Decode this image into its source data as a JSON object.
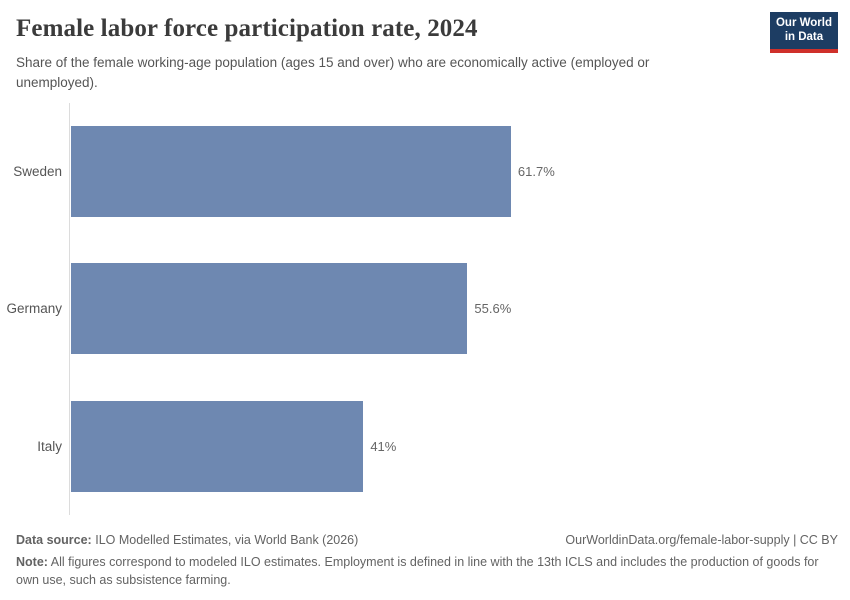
{
  "header": {
    "title": "Female labor force participation rate, 2024",
    "subtitle": "Share of the female working-age population (ages 15 and over) who are economically active (employed or unemployed).",
    "logo": {
      "line1": "Our World",
      "line2": "in Data"
    }
  },
  "chart_data": {
    "type": "bar",
    "orientation": "horizontal",
    "title": "Female labor force participation rate, 2024",
    "categories": [
      "Sweden",
      "Germany",
      "Italy"
    ],
    "values": [
      61.7,
      55.6,
      41
    ],
    "value_labels": [
      "61.7%",
      "55.6%",
      "41%"
    ],
    "unit": "%",
    "xlabel": "",
    "ylabel": "",
    "xlim": [
      0,
      100
    ],
    "grid": false,
    "legend": "none",
    "bar_color": "#6e88b1"
  },
  "footer": {
    "source_label": "Data source:",
    "source_text": "ILO Modelled Estimates, via World Bank (2026)",
    "citation": "OurWorldinData.org/female-labor-supply | CC BY",
    "note_label": "Note:",
    "note_text": "All figures correspond to modeled ILO estimates. Employment is defined in line with the 13th ICLS and includes the production of goods for own use, such as subsistence farming."
  },
  "colors": {
    "bar": "#6e88b1",
    "logo_navy": "#1d3d63",
    "logo_red": "#cf302a",
    "axis_line": "#dcdcdc"
  }
}
